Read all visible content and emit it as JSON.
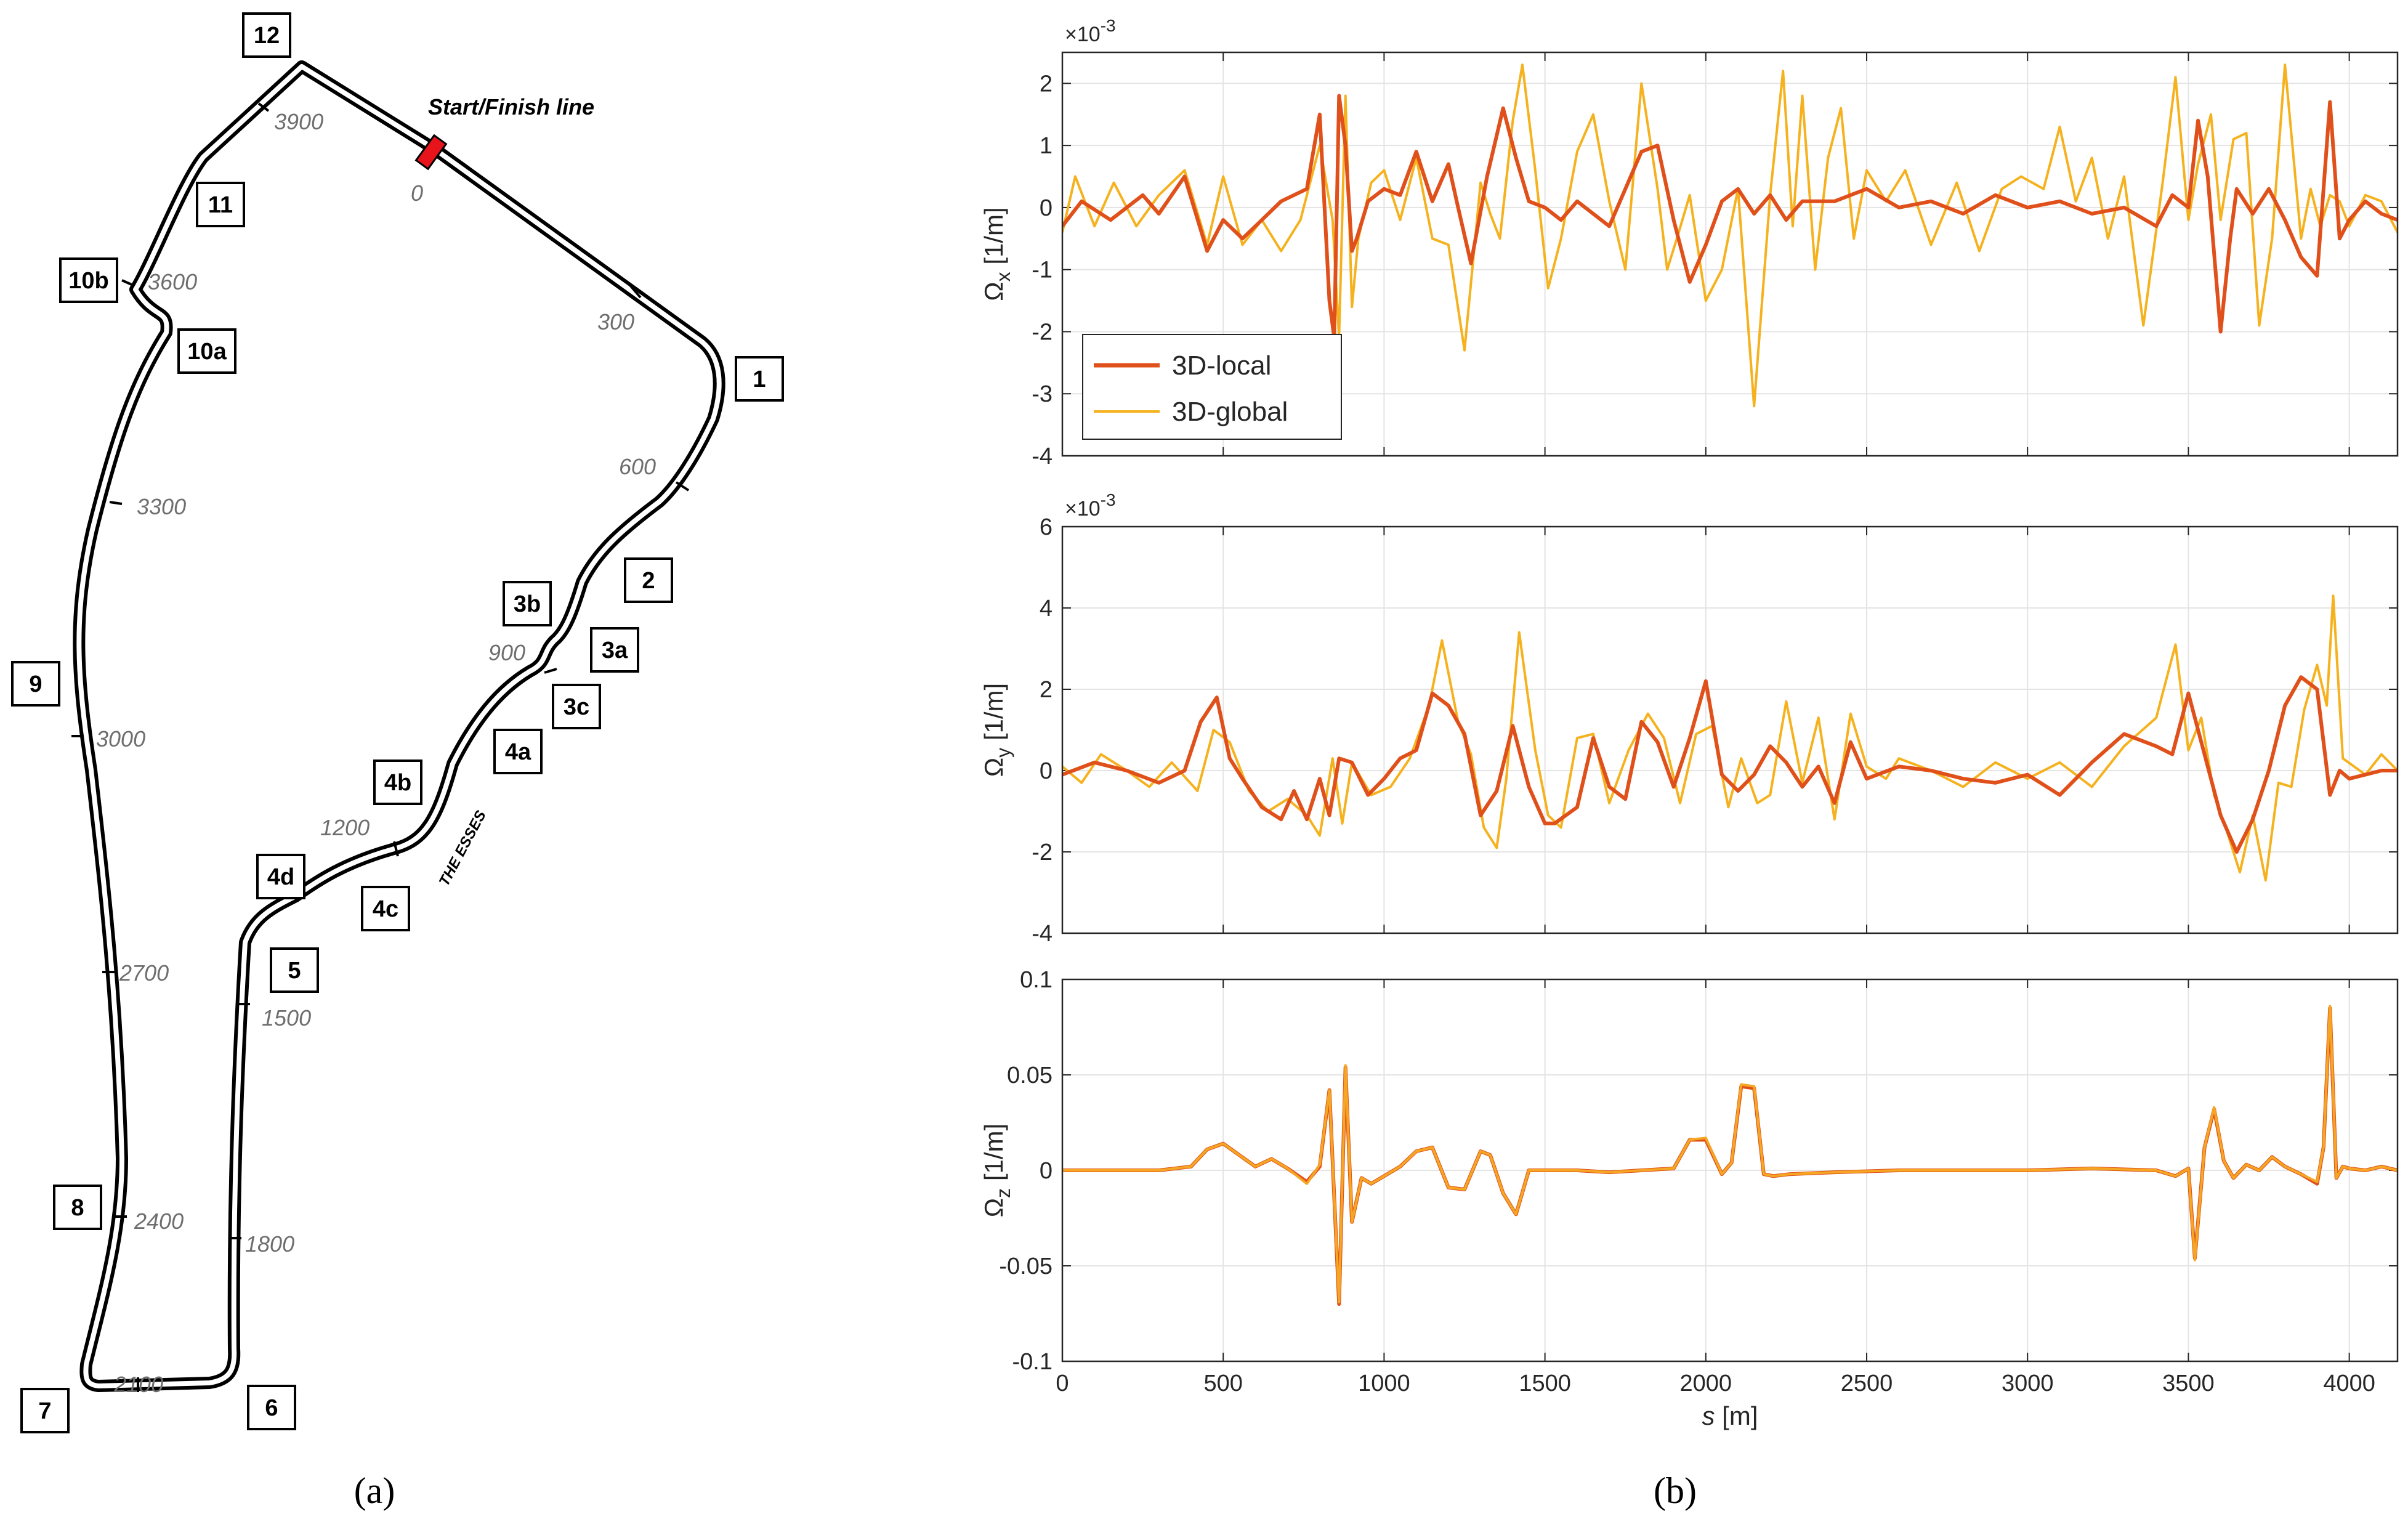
{
  "panel_labels": {
    "a": "(a)",
    "b": "(b)"
  },
  "track": {
    "start_finish_label": "Start/Finish line",
    "esses_label": "THE ESSES",
    "colors": {
      "track": "#000000",
      "start_finish": "#e8141b",
      "distance_text": "#6e6e6e"
    },
    "turns": [
      "1",
      "2",
      "3a",
      "3b",
      "3c",
      "4a",
      "4b",
      "4c",
      "4d",
      "5",
      "6",
      "7",
      "8",
      "9",
      "10a",
      "10b",
      "11",
      "12"
    ],
    "distance_markers": [
      "0",
      "300",
      "600",
      "900",
      "1200",
      "1500",
      "1800",
      "2100",
      "2400",
      "2700",
      "3000",
      "3300",
      "3600",
      "3900"
    ]
  },
  "chart_data": [
    {
      "type": "line",
      "ylabel_symbol": "Ω",
      "ylabel_sub": "x",
      "ylabel_unit": "[1/m]",
      "exponent_label": "×10",
      "exponent_power": "-3",
      "xlim": [
        0,
        4150
      ],
      "ylim": [
        -4,
        2.5
      ],
      "yticks": [
        -4,
        -3,
        -2,
        -1,
        0,
        1,
        2
      ],
      "ytick_labels": [
        "-4",
        "-3",
        "-2",
        "-1",
        "0",
        "1",
        "2"
      ],
      "grid": true,
      "legend": {
        "position": "bottom-left",
        "entries": [
          "3D-local",
          "3D-global"
        ]
      },
      "series": [
        {
          "name": "3D-local",
          "color": "#e0501a",
          "x": [
            0,
            60,
            150,
            250,
            300,
            380,
            450,
            500,
            560,
            620,
            680,
            760,
            800,
            830,
            845,
            860,
            880,
            900,
            915,
            950,
            1000,
            1050,
            1100,
            1150,
            1200,
            1230,
            1270,
            1320,
            1370,
            1410,
            1450,
            1500,
            1550,
            1600,
            1650,
            1700,
            1750,
            1800,
            1850,
            1900,
            1950,
            2000,
            2050,
            2100,
            2150,
            2200,
            2250,
            2300,
            2400,
            2500,
            2600,
            2700,
            2800,
            2900,
            3000,
            3100,
            3200,
            3300,
            3400,
            3450,
            3500,
            3530,
            3560,
            3600,
            3630,
            3650,
            3700,
            3750,
            3800,
            3850,
            3900,
            3940,
            3970,
            4000,
            4050,
            4100,
            4150
          ],
          "y": [
            -0.3,
            0.1,
            -0.2,
            0.2,
            -0.1,
            0.5,
            -0.7,
            -0.2,
            -0.5,
            -0.2,
            0.1,
            0.3,
            1.5,
            -1.5,
            -2.1,
            1.8,
            1.0,
            -0.7,
            -0.5,
            0.1,
            0.3,
            0.2,
            0.9,
            0.1,
            0.7,
            0.0,
            -0.9,
            0.5,
            1.6,
            0.8,
            0.1,
            0.0,
            -0.2,
            0.1,
            -0.1,
            -0.3,
            0.3,
            0.9,
            1.0,
            -0.2,
            -1.2,
            -0.6,
            0.1,
            0.3,
            -0.1,
            0.2,
            -0.2,
            0.1,
            0.1,
            0.3,
            0.0,
            0.1,
            -0.1,
            0.2,
            0.0,
            0.1,
            -0.1,
            0.0,
            -0.3,
            0.2,
            0.0,
            1.4,
            0.5,
            -2.0,
            -0.5,
            0.3,
            -0.1,
            0.3,
            -0.2,
            -0.8,
            -1.1,
            1.7,
            -0.5,
            -0.2,
            0.1,
            -0.1,
            -0.2
          ]
        },
        {
          "name": "3D-global",
          "color": "#f5b21e",
          "x": [
            0,
            40,
            100,
            160,
            230,
            300,
            380,
            450,
            500,
            560,
            620,
            680,
            740,
            800,
            840,
            860,
            880,
            900,
            920,
            960,
            1000,
            1050,
            1100,
            1150,
            1200,
            1250,
            1300,
            1330,
            1360,
            1400,
            1430,
            1470,
            1510,
            1550,
            1600,
            1650,
            1700,
            1750,
            1800,
            1850,
            1880,
            1910,
            1950,
            2000,
            2050,
            2100,
            2150,
            2200,
            2240,
            2270,
            2300,
            2340,
            2380,
            2420,
            2460,
            2500,
            2560,
            2620,
            2700,
            2780,
            2850,
            2920,
            2980,
            3050,
            3100,
            3150,
            3200,
            3250,
            3300,
            3360,
            3420,
            3460,
            3500,
            3530,
            3570,
            3600,
            3640,
            3680,
            3720,
            3760,
            3800,
            3850,
            3880,
            3910,
            3940,
            3970,
            4000,
            4050,
            4100,
            4150
          ],
          "y": [
            -0.4,
            0.5,
            -0.3,
            0.4,
            -0.3,
            0.2,
            0.6,
            -0.6,
            0.5,
            -0.6,
            -0.2,
            -0.7,
            -0.2,
            1.0,
            -0.2,
            -2.1,
            1.8,
            -1.6,
            -0.5,
            0.4,
            0.6,
            -0.2,
            0.8,
            -0.5,
            -0.6,
            -2.3,
            0.4,
            -0.1,
            -0.5,
            1.4,
            2.3,
            0.6,
            -1.3,
            -0.5,
            0.9,
            1.5,
            0.1,
            -1.0,
            2.0,
            0.3,
            -1.0,
            -0.5,
            0.2,
            -1.5,
            -1.0,
            0.3,
            -3.2,
            0.2,
            2.2,
            -0.3,
            1.8,
            -1.0,
            0.8,
            1.6,
            -0.5,
            0.6,
            0.1,
            0.6,
            -0.6,
            0.4,
            -0.7,
            0.3,
            0.5,
            0.3,
            1.3,
            0.1,
            0.8,
            -0.5,
            0.5,
            -1.9,
            0.4,
            2.1,
            -0.2,
            0.7,
            1.5,
            -0.2,
            1.1,
            1.2,
            -1.9,
            -0.5,
            2.3,
            -0.5,
            0.3,
            -0.3,
            0.2,
            0.1,
            -0.3,
            0.2,
            0.1,
            -0.4
          ]
        }
      ]
    },
    {
      "type": "line",
      "ylabel_symbol": "Ω",
      "ylabel_sub": "y",
      "ylabel_unit": "[1/m]",
      "exponent_label": "×10",
      "exponent_power": "-3",
      "xlim": [
        0,
        4150
      ],
      "ylim": [
        -4,
        6
      ],
      "yticks": [
        -4,
        -2,
        0,
        2,
        4,
        6
      ],
      "ytick_labels": [
        "-4",
        "-2",
        "0",
        "2",
        "4",
        "6"
      ],
      "grid": true,
      "series": [
        {
          "name": "3D-local",
          "color": "#e0501a",
          "x": [
            0,
            100,
            200,
            300,
            380,
            430,
            480,
            520,
            560,
            620,
            680,
            720,
            760,
            800,
            830,
            860,
            900,
            950,
            1000,
            1050,
            1100,
            1150,
            1200,
            1250,
            1300,
            1350,
            1400,
            1450,
            1500,
            1530,
            1600,
            1650,
            1700,
            1750,
            1800,
            1850,
            1900,
            1950,
            2000,
            2050,
            2100,
            2150,
            2200,
            2250,
            2300,
            2350,
            2400,
            2450,
            2500,
            2600,
            2700,
            2800,
            2900,
            3000,
            3100,
            3200,
            3300,
            3400,
            3450,
            3500,
            3550,
            3600,
            3650,
            3700,
            3750,
            3800,
            3850,
            3900,
            3940,
            3970,
            4000,
            4050,
            4100,
            4150
          ],
          "y": [
            -0.1,
            0.2,
            0.0,
            -0.3,
            0.0,
            1.2,
            1.8,
            0.3,
            -0.2,
            -0.9,
            -1.2,
            -0.5,
            -1.2,
            -0.2,
            -1.1,
            0.3,
            0.2,
            -0.6,
            -0.2,
            0.3,
            0.5,
            1.9,
            1.6,
            0.9,
            -1.1,
            -0.5,
            1.1,
            -0.4,
            -1.3,
            -1.3,
            -0.9,
            0.8,
            -0.4,
            -0.7,
            1.2,
            0.7,
            -0.4,
            0.8,
            2.2,
            -0.1,
            -0.5,
            -0.1,
            0.6,
            0.2,
            -0.4,
            0.1,
            -0.8,
            0.7,
            -0.2,
            0.1,
            0.0,
            -0.2,
            -0.3,
            -0.1,
            -0.6,
            0.2,
            0.9,
            0.6,
            0.4,
            1.9,
            0.4,
            -1.1,
            -2.0,
            -1.2,
            0.0,
            1.6,
            2.3,
            2.0,
            -0.6,
            0.0,
            -0.2,
            -0.1,
            0.0,
            0.0
          ]
        },
        {
          "name": "3D-global",
          "color": "#f5b21e",
          "x": [
            0,
            60,
            120,
            200,
            270,
            340,
            420,
            470,
            520,
            580,
            640,
            700,
            760,
            800,
            840,
            870,
            900,
            960,
            1020,
            1080,
            1140,
            1180,
            1230,
            1270,
            1310,
            1350,
            1380,
            1420,
            1470,
            1510,
            1550,
            1600,
            1650,
            1700,
            1760,
            1820,
            1870,
            1920,
            1970,
            2020,
            2070,
            2110,
            2160,
            2200,
            2250,
            2300,
            2350,
            2400,
            2450,
            2500,
            2560,
            2600,
            2700,
            2800,
            2900,
            3000,
            3100,
            3200,
            3300,
            3400,
            3460,
            3500,
            3540,
            3580,
            3620,
            3660,
            3700,
            3740,
            3780,
            3820,
            3860,
            3900,
            3930,
            3950,
            3980,
            4050,
            4100,
            4150
          ],
          "y": [
            0.1,
            -0.3,
            0.4,
            0.0,
            -0.4,
            0.2,
            -0.5,
            1.0,
            0.7,
            -0.5,
            -1.0,
            -0.7,
            -1.1,
            -1.6,
            0.3,
            -1.3,
            0.2,
            -0.6,
            -0.4,
            0.3,
            1.6,
            3.2,
            1.2,
            0.4,
            -1.4,
            -1.9,
            -0.2,
            3.4,
            0.5,
            -1.1,
            -1.4,
            0.8,
            0.9,
            -0.8,
            0.5,
            1.4,
            0.8,
            -0.8,
            0.9,
            1.1,
            -0.9,
            0.3,
            -0.8,
            -0.6,
            1.7,
            -0.3,
            1.3,
            -1.2,
            1.4,
            0.1,
            -0.2,
            0.3,
            0.0,
            -0.4,
            0.2,
            -0.2,
            0.2,
            -0.4,
            0.6,
            1.3,
            3.1,
            0.5,
            1.3,
            -0.6,
            -1.5,
            -2.5,
            -1.1,
            -2.7,
            -0.3,
            -0.4,
            1.5,
            2.6,
            1.6,
            4.3,
            0.3,
            -0.1,
            0.4,
            0.0
          ]
        }
      ]
    },
    {
      "type": "line",
      "ylabel_symbol": "Ω",
      "ylabel_sub": "z",
      "ylabel_unit": "[1/m]",
      "xlabel_var": "s",
      "xlabel_unit": " [m]",
      "xlim": [
        0,
        4150
      ],
      "ylim": [
        -0.1,
        0.1
      ],
      "xticks": [
        0,
        500,
        1000,
        1500,
        2000,
        2500,
        3000,
        3500,
        4000
      ],
      "xtick_labels": [
        "0",
        "500",
        "1000",
        "1500",
        "2000",
        "2500",
        "3000",
        "3500",
        "4000"
      ],
      "yticks": [
        -0.1,
        -0.05,
        0,
        0.05,
        0.1
      ],
      "ytick_labels": [
        "-0.1",
        "-0.05",
        "0",
        "0.05",
        "0.1"
      ],
      "grid": true,
      "series": [
        {
          "name": "3D-local",
          "color": "#e0501a",
          "x": [
            0,
            300,
            400,
            450,
            500,
            550,
            600,
            650,
            700,
            760,
            800,
            830,
            860,
            880,
            900,
            930,
            960,
            1000,
            1050,
            1100,
            1150,
            1200,
            1250,
            1300,
            1330,
            1370,
            1410,
            1450,
            1500,
            1600,
            1700,
            1800,
            1900,
            1950,
            2000,
            2050,
            2080,
            2110,
            2150,
            2180,
            2210,
            2260,
            2400,
            2600,
            2800,
            3000,
            3200,
            3400,
            3460,
            3500,
            3520,
            3550,
            3580,
            3610,
            3640,
            3680,
            3720,
            3760,
            3800,
            3850,
            3900,
            3920,
            3940,
            3960,
            3980,
            4000,
            4050,
            4100,
            4150
          ],
          "y": [
            0,
            0,
            0.002,
            0.011,
            0.014,
            0.008,
            0.002,
            0.006,
            0.001,
            -0.006,
            0.002,
            0.042,
            -0.07,
            0.054,
            -0.027,
            -0.004,
            -0.007,
            -0.003,
            0.002,
            0.01,
            0.012,
            -0.009,
            -0.01,
            0.01,
            0.008,
            -0.012,
            -0.023,
            0.0,
            0.0,
            0.0,
            -0.001,
            0.0,
            0.001,
            0.016,
            0.016,
            -0.002,
            0.004,
            0.044,
            0.043,
            -0.002,
            -0.003,
            -0.002,
            -0.001,
            0.0,
            0.0,
            0.0,
            0.001,
            0.0,
            -0.003,
            0.001,
            -0.046,
            0.012,
            0.032,
            0.005,
            -0.004,
            0.003,
            0.0,
            0.007,
            0.002,
            -0.002,
            -0.007,
            0.012,
            0.085,
            -0.004,
            0.002,
            0.001,
            0.0,
            0.002,
            0.0
          ]
        },
        {
          "name": "3D-global",
          "color": "#f5a623",
          "x": [
            0,
            300,
            400,
            450,
            500,
            550,
            600,
            650,
            700,
            760,
            800,
            830,
            860,
            880,
            900,
            930,
            960,
            1000,
            1050,
            1100,
            1150,
            1200,
            1250,
            1300,
            1330,
            1370,
            1410,
            1450,
            1500,
            1600,
            1700,
            1800,
            1900,
            1950,
            2000,
            2050,
            2080,
            2110,
            2150,
            2180,
            2210,
            2260,
            2400,
            2600,
            2800,
            3000,
            3200,
            3400,
            3460,
            3500,
            3520,
            3550,
            3580,
            3610,
            3640,
            3680,
            3720,
            3760,
            3800,
            3850,
            3900,
            3920,
            3940,
            3960,
            3980,
            4000,
            4050,
            4100,
            4150
          ],
          "y": [
            0,
            0,
            0.002,
            0.011,
            0.014,
            0.008,
            0.002,
            0.006,
            0.001,
            -0.007,
            0.003,
            0.042,
            -0.069,
            0.055,
            -0.027,
            -0.004,
            -0.007,
            -0.003,
            0.002,
            0.01,
            0.012,
            -0.009,
            -0.01,
            0.01,
            0.008,
            -0.012,
            -0.023,
            0.0,
            0.0,
            0.0,
            -0.001,
            0.0,
            0.001,
            0.016,
            0.017,
            -0.002,
            0.004,
            0.045,
            0.044,
            -0.002,
            -0.003,
            -0.002,
            -0.001,
            0.0,
            0.0,
            0.0,
            0.001,
            0.0,
            -0.003,
            0.001,
            -0.047,
            0.012,
            0.033,
            0.005,
            -0.004,
            0.003,
            0.0,
            0.007,
            0.002,
            -0.002,
            -0.006,
            0.012,
            0.086,
            -0.004,
            0.002,
            0.001,
            0.0,
            0.002,
            0.0
          ]
        }
      ]
    }
  ]
}
